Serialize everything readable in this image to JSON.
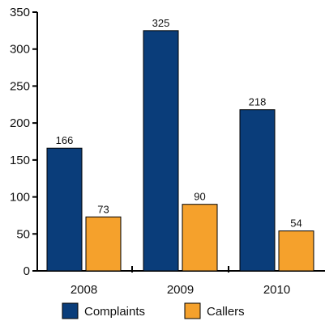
{
  "chart_data": {
    "type": "bar",
    "categories": [
      "2008",
      "2009",
      "2010"
    ],
    "series": [
      {
        "name": "Complaints",
        "values": [
          166,
          325,
          218
        ],
        "color": "#0a3d7a"
      },
      {
        "name": "Callers",
        "values": [
          73,
          90,
          54
        ],
        "color": "#f5a12c"
      }
    ],
    "ylim": [
      0,
      350
    ],
    "yticks": [
      0,
      50,
      100,
      150,
      200,
      250,
      300,
      350
    ],
    "title": "",
    "xlabel": "",
    "ylabel": "",
    "legend_position": "bottom",
    "grid": false
  }
}
